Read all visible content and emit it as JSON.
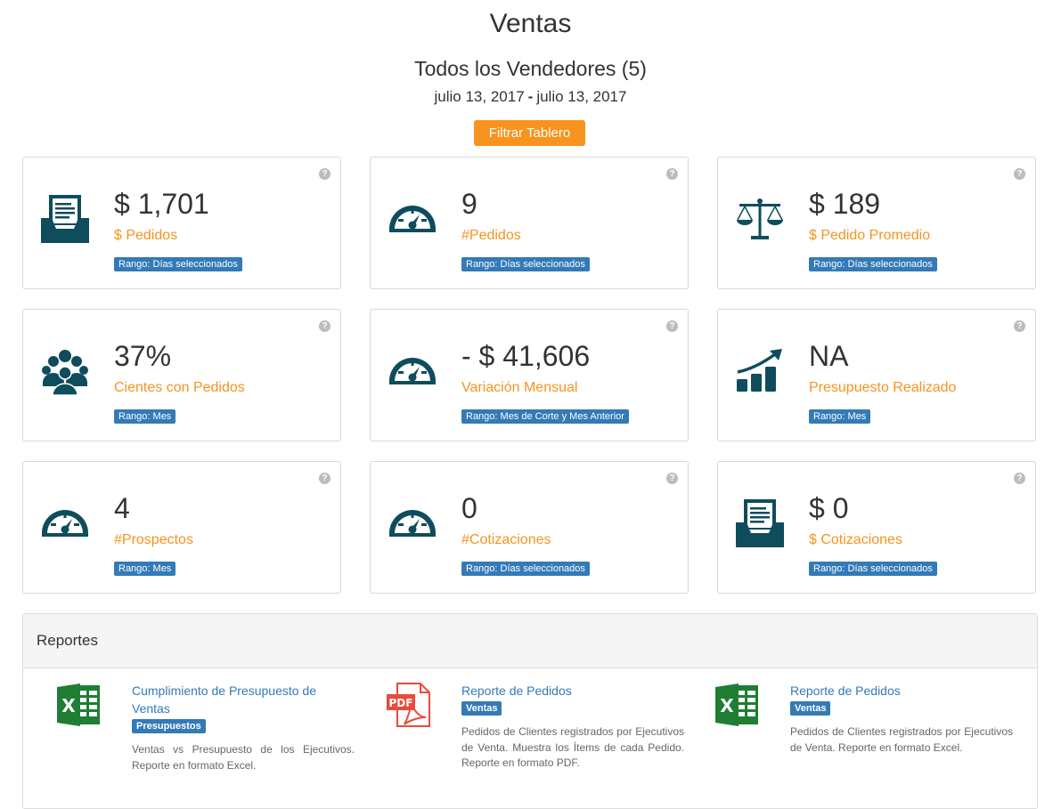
{
  "header": {
    "title": "Ventas",
    "subtitle": "Todos los Vendedores (5)",
    "date_from": "julio 13, 2017",
    "date_sep": "-",
    "date_to": "julio 13, 2017",
    "filter_button": "Filtrar Tablero"
  },
  "help_glyph": "?",
  "cards": [
    {
      "value": "$ 1,701",
      "label": "$ Pedidos",
      "badge": "Rango: Días seleccionados",
      "icon": "inbox-document-icon"
    },
    {
      "value": "9",
      "label": "#Pedidos",
      "badge": "Rango: Días seleccionados",
      "icon": "speedometer-icon"
    },
    {
      "value": "$ 189",
      "label": "$ Pedido Promedio",
      "badge": "Rango: Días seleccionados",
      "icon": "balance-scale-icon"
    },
    {
      "value": "37%",
      "label": "Cientes con Pedidos",
      "badge": "Rango: Mes",
      "icon": "users-group-icon"
    },
    {
      "value": "- $ 41,606",
      "label": "Variación Mensual",
      "badge": "Rango: Mes de Corte y Mes Anterior",
      "icon": "speedometer-icon"
    },
    {
      "value": "NA",
      "label": "Presupuesto Realizado",
      "badge": "Rango: Mes",
      "icon": "growth-chart-icon"
    },
    {
      "value": "4",
      "label": "#Prospectos",
      "badge": "Rango: Mes",
      "icon": "speedometer-icon"
    },
    {
      "value": "0",
      "label": "#Cotizaciones",
      "badge": "Rango: Días seleccionados",
      "icon": "speedometer-icon"
    },
    {
      "value": "$ 0",
      "label": "$ Cotizaciones",
      "badge": "Rango: Días seleccionados",
      "icon": "inbox-document-icon"
    }
  ],
  "reports": {
    "title": "Reportes",
    "items": [
      {
        "title": "Cumplimiento de Presupuesto de Ventas",
        "badge": "Presupuestos",
        "desc": "Ventas vs Presupuesto de los Ejecutivos. Reporte en formato Excel.",
        "icon": "excel-file-icon",
        "icon_text": "X"
      },
      {
        "title": "Reporte de Pedidos",
        "badge": "Ventas",
        "desc": "Pedidos de Clientes registrados por Ejecutivos de Venta. Muestra los Ítems de cada Pedido. Reporte en formato PDF.",
        "icon": "pdf-file-icon",
        "icon_text": "PDF"
      },
      {
        "title": "Reporte de Pedidos",
        "badge": "Ventas",
        "desc": "Pedidos de Clientes registrados por Ejecutivos de Venta. Reporte en formato Excel.",
        "icon": "excel-file-icon",
        "icon_text": "X"
      }
    ]
  },
  "colors": {
    "accent": "#f7931e",
    "primary": "#337ab7",
    "icon": "#0f4c5c",
    "excel": "#1e7e34",
    "pdf": "#e74c3c"
  }
}
